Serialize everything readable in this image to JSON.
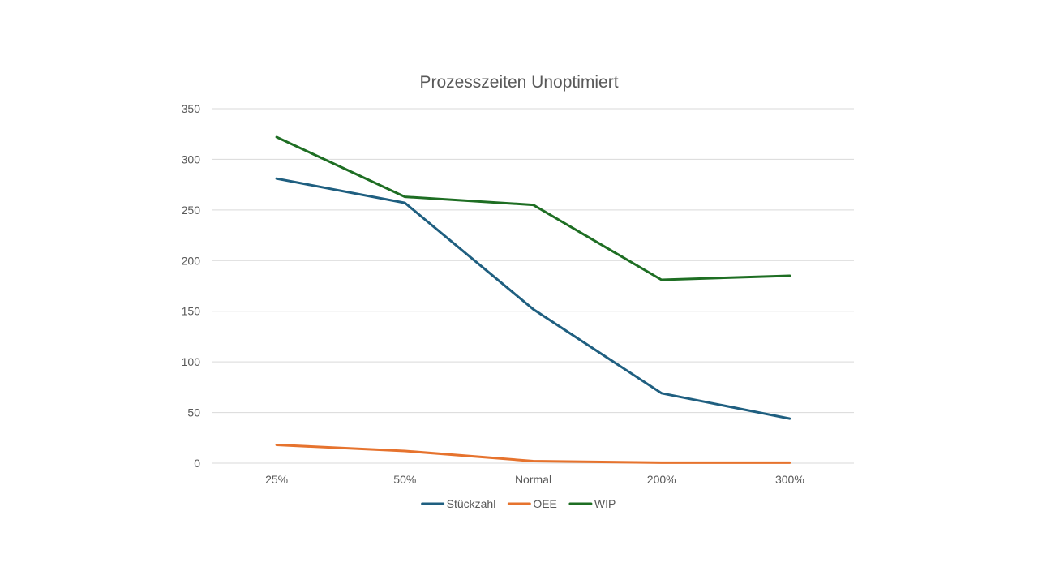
{
  "chart_data": {
    "type": "line",
    "title": "Prozesszeiten Unoptimiert",
    "xlabel": "",
    "ylabel": "",
    "categories": [
      "25%",
      "50%",
      "Normal",
      "200%",
      "300%"
    ],
    "ylim": [
      0,
      350
    ],
    "yticks": [
      0,
      50,
      100,
      150,
      200,
      250,
      300,
      350
    ],
    "grid": true,
    "legend": "bottom",
    "series": [
      {
        "name": "Stückzahl",
        "color": "#1f5f80",
        "values": [
          281,
          257,
          152,
          69,
          44
        ]
      },
      {
        "name": "OEE",
        "color": "#e6732e",
        "values": [
          18,
          12,
          2,
          0.5,
          0.5
        ]
      },
      {
        "name": "WIP",
        "color": "#1e6e23",
        "values": [
          322,
          263,
          255,
          181,
          185
        ]
      }
    ]
  }
}
